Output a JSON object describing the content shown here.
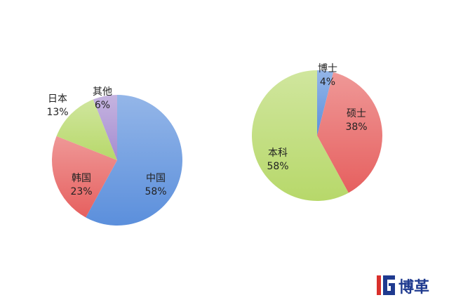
{
  "chart_data": [
    {
      "type": "pie",
      "categories": [
        "中国",
        "韩国",
        "日本",
        "其他"
      ],
      "values": [
        58,
        23,
        13,
        6
      ],
      "labels": [
        "58%",
        "23%",
        "13%",
        "6%"
      ],
      "colors": [
        "#5b8fdc",
        "#e6605f",
        "#b7d86a",
        "#a58cd0"
      ],
      "start": "top",
      "direction": "clockwise"
    },
    {
      "type": "pie",
      "categories": [
        "博士",
        "硕士",
        "本科"
      ],
      "values": [
        4,
        38,
        58
      ],
      "labels": [
        "4%",
        "38%",
        "58%"
      ],
      "colors": [
        "#5b8fdc",
        "#e6605f",
        "#b7d86a"
      ],
      "start": "top",
      "direction": "clockwise"
    }
  ],
  "logo": {
    "text": "博革",
    "mark": "IG",
    "colors": [
      "#d9302c",
      "#1f3a8f"
    ]
  }
}
